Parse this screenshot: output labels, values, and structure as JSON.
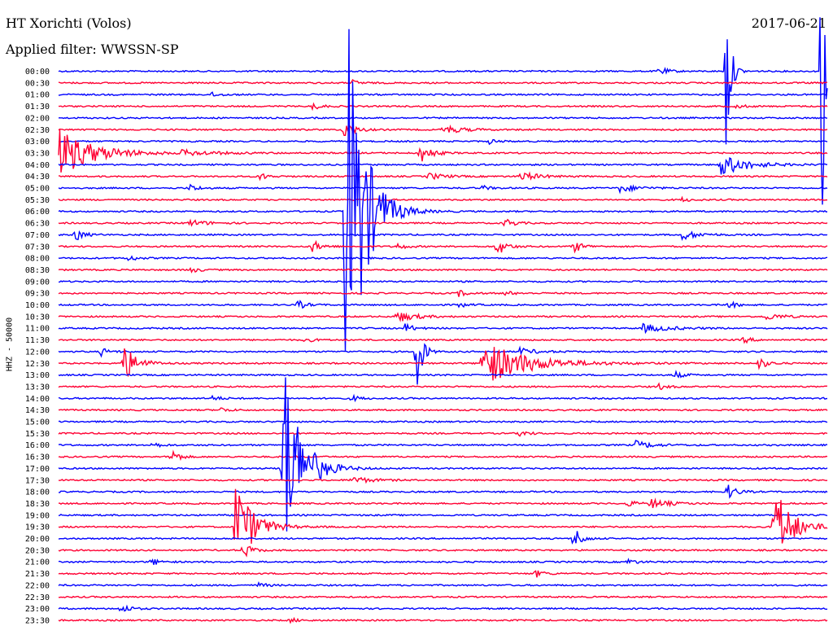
{
  "header": {
    "station": "HT Xorichti (Volos)",
    "filter": "Applied filter: WWSSN-SP",
    "date": "2017-06-21"
  },
  "chart_data": {
    "type": "line",
    "title": "HT Xorichti (Volos)",
    "subtitle": "Applied filter: WWSSN-SP",
    "date": "2017-06-21",
    "ylabel": "HHZ - 50000",
    "colors": [
      "#0000ff",
      "#ff0033"
    ],
    "row_labels": [
      "00:00",
      "00:30",
      "01:00",
      "01:30",
      "02:00",
      "02:30",
      "03:00",
      "03:30",
      "04:00",
      "04:30",
      "05:00",
      "05:30",
      "06:00",
      "06:30",
      "07:00",
      "07:30",
      "08:00",
      "08:30",
      "09:00",
      "09:30",
      "10:00",
      "10:30",
      "11:00",
      "11:30",
      "12:00",
      "12:30",
      "13:00",
      "13:30",
      "14:00",
      "14:30",
      "15:00",
      "15:30",
      "16:00",
      "16:30",
      "17:00",
      "17:30",
      "18:00",
      "18:30",
      "19:00",
      "19:30",
      "20:00",
      "20:30",
      "21:00",
      "21:30",
      "22:00",
      "22:30",
      "23:00",
      "23:30"
    ],
    "events": [
      {
        "row": 0,
        "t": 0.78,
        "a": 6,
        "d": 0.01
      },
      {
        "row": 0,
        "t": 0.868,
        "a": 130,
        "d": 0.005
      },
      {
        "row": 0,
        "t": 0.992,
        "a": 300,
        "d": 0.004
      },
      {
        "row": 1,
        "t": 0.38,
        "a": 4,
        "d": 0.01
      },
      {
        "row": 2,
        "t": 0.2,
        "a": 3,
        "d": 0.01
      },
      {
        "row": 3,
        "t": 0.33,
        "a": 4,
        "d": 0.01
      },
      {
        "row": 3,
        "t": 0.88,
        "a": 3,
        "d": 0.01
      },
      {
        "row": 5,
        "t": 0.37,
        "a": 12,
        "d": 0.012
      },
      {
        "row": 5,
        "t": 0.5,
        "a": 6,
        "d": 0.02
      },
      {
        "row": 6,
        "t": 0.56,
        "a": 3,
        "d": 0.01
      },
      {
        "row": 7,
        "t": 0.001,
        "a": 30,
        "d": 0.04
      },
      {
        "row": 7,
        "t": 0.47,
        "a": 14,
        "d": 0.012
      },
      {
        "row": 7,
        "t": 0.16,
        "a": 3,
        "d": 0.04
      },
      {
        "row": 8,
        "t": 0.86,
        "a": 14,
        "d": 0.03
      },
      {
        "row": 9,
        "t": 0.26,
        "a": 5,
        "d": 0.01
      },
      {
        "row": 9,
        "t": 0.6,
        "a": 6,
        "d": 0.02
      },
      {
        "row": 9,
        "t": 0.48,
        "a": 4,
        "d": 0.02
      },
      {
        "row": 10,
        "t": 0.17,
        "a": 5,
        "d": 0.01
      },
      {
        "row": 10,
        "t": 0.73,
        "a": 5,
        "d": 0.02
      },
      {
        "row": 10,
        "t": 0.55,
        "a": 3,
        "d": 0.01
      },
      {
        "row": 11,
        "t": 0.81,
        "a": 3,
        "d": 0.01
      },
      {
        "row": 12,
        "t": 0.372,
        "a": 320,
        "d": 0.02
      },
      {
        "row": 13,
        "t": 0.58,
        "a": 7,
        "d": 0.01
      },
      {
        "row": 13,
        "t": 0.17,
        "a": 4,
        "d": 0.02
      },
      {
        "row": 14,
        "t": 0.02,
        "a": 9,
        "d": 0.01
      },
      {
        "row": 14,
        "t": 0.81,
        "a": 6,
        "d": 0.02
      },
      {
        "row": 15,
        "t": 0.33,
        "a": 8,
        "d": 0.01
      },
      {
        "row": 15,
        "t": 0.57,
        "a": 12,
        "d": 0.01
      },
      {
        "row": 15,
        "t": 0.67,
        "a": 8,
        "d": 0.01
      },
      {
        "row": 15,
        "t": 0.44,
        "a": 4,
        "d": 0.01
      },
      {
        "row": 16,
        "t": 0.09,
        "a": 4,
        "d": 0.01
      },
      {
        "row": 17,
        "t": 0.17,
        "a": 4,
        "d": 0.01
      },
      {
        "row": 19,
        "t": 0.52,
        "a": 4,
        "d": 0.01
      },
      {
        "row": 19,
        "t": 0.58,
        "a": 3,
        "d": 0.01
      },
      {
        "row": 20,
        "t": 0.31,
        "a": 6,
        "d": 0.01
      },
      {
        "row": 20,
        "t": 0.87,
        "a": 5,
        "d": 0.01
      },
      {
        "row": 20,
        "t": 0.52,
        "a": 3,
        "d": 0.01
      },
      {
        "row": 21,
        "t": 0.44,
        "a": 7,
        "d": 0.02
      },
      {
        "row": 21,
        "t": 0.92,
        "a": 4,
        "d": 0.02
      },
      {
        "row": 22,
        "t": 0.45,
        "a": 6,
        "d": 0.01
      },
      {
        "row": 22,
        "t": 0.76,
        "a": 5,
        "d": 0.03
      },
      {
        "row": 23,
        "t": 0.32,
        "a": 3,
        "d": 0.01
      },
      {
        "row": 23,
        "t": 0.89,
        "a": 4,
        "d": 0.01
      },
      {
        "row": 24,
        "t": 0.055,
        "a": 5,
        "d": 0.01
      },
      {
        "row": 24,
        "t": 0.465,
        "a": 70,
        "d": 0.006
      },
      {
        "row": 24,
        "t": 0.6,
        "a": 4,
        "d": 0.02
      },
      {
        "row": 25,
        "t": 0.083,
        "a": 26,
        "d": 0.015
      },
      {
        "row": 25,
        "t": 0.55,
        "a": 30,
        "d": 0.05
      },
      {
        "row": 25,
        "t": 0.91,
        "a": 8,
        "d": 0.01
      },
      {
        "row": 26,
        "t": 0.8,
        "a": 5,
        "d": 0.01
      },
      {
        "row": 27,
        "t": 0.78,
        "a": 4,
        "d": 0.01
      },
      {
        "row": 28,
        "t": 0.2,
        "a": 3,
        "d": 0.01
      },
      {
        "row": 28,
        "t": 0.38,
        "a": 4,
        "d": 0.01
      },
      {
        "row": 29,
        "t": 0.21,
        "a": 3,
        "d": 0.01
      },
      {
        "row": 31,
        "t": 0.6,
        "a": 4,
        "d": 0.01
      },
      {
        "row": 32,
        "t": 0.12,
        "a": 4,
        "d": 0.01
      },
      {
        "row": 32,
        "t": 0.75,
        "a": 5,
        "d": 0.02
      },
      {
        "row": 33,
        "t": 0.145,
        "a": 14,
        "d": 0.008
      },
      {
        "row": 34,
        "t": 0.29,
        "a": 160,
        "d": 0.02
      },
      {
        "row": 35,
        "t": 0.38,
        "a": 5,
        "d": 0.02
      },
      {
        "row": 36,
        "t": 0.87,
        "a": 10,
        "d": 0.01
      },
      {
        "row": 37,
        "t": 0.77,
        "a": 6,
        "d": 0.02
      },
      {
        "row": 37,
        "t": 0.74,
        "a": 4,
        "d": 0.01
      },
      {
        "row": 39,
        "t": 0.23,
        "a": 60,
        "d": 0.02
      },
      {
        "row": 39,
        "t": 0.93,
        "a": 55,
        "d": 0.02
      },
      {
        "row": 40,
        "t": 0.67,
        "a": 18,
        "d": 0.008
      },
      {
        "row": 41,
        "t": 0.24,
        "a": 10,
        "d": 0.01
      },
      {
        "row": 42,
        "t": 0.12,
        "a": 5,
        "d": 0.01
      },
      {
        "row": 42,
        "t": 0.74,
        "a": 4,
        "d": 0.01
      },
      {
        "row": 43,
        "t": 0.62,
        "a": 5,
        "d": 0.01
      },
      {
        "row": 44,
        "t": 0.26,
        "a": 3,
        "d": 0.01
      },
      {
        "row": 46,
        "t": 0.08,
        "a": 7,
        "d": 0.01
      },
      {
        "row": 47,
        "t": 0.3,
        "a": 3,
        "d": 0.01
      }
    ]
  }
}
